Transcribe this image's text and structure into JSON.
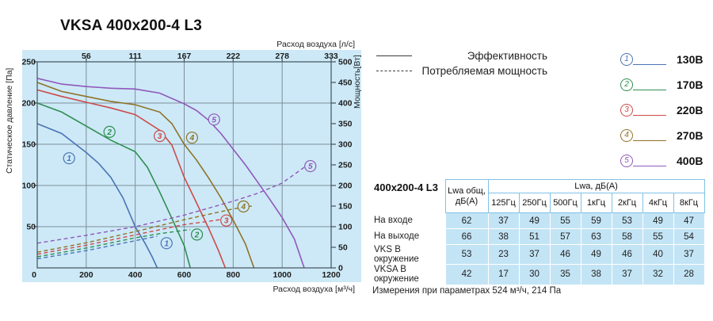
{
  "title": "VKSA 400x200-4 L3",
  "chart_data": {
    "type": "line",
    "title": "VKSA 400x200-4 L3",
    "bg_color": "#cde9f7",
    "grid_color": "#7d8e98",
    "frame_color": "#43525c",
    "axes": {
      "x_bottom": {
        "label": "Расход воздуха [м³/ч]",
        "range": [
          0,
          1200
        ],
        "ticks": [
          0,
          200,
          400,
          600,
          800,
          1000,
          1200
        ]
      },
      "x_top": {
        "label": "Расход воздуха [л/с]",
        "ticks": [
          "56",
          "111",
          "167",
          "222",
          "278",
          "333"
        ],
        "tick_positions": [
          200,
          400,
          600,
          800,
          1000,
          1200
        ]
      },
      "y_left": {
        "label": "Статическое давление [Па]",
        "range": [
          0,
          250
        ],
        "ticks": [
          50,
          100,
          150,
          200,
          250
        ]
      },
      "y_right": {
        "label": "Мощность[Вт]",
        "range": [
          0,
          500
        ],
        "ticks": [
          0,
          50,
          100,
          150,
          200,
          250,
          300,
          350,
          400,
          450,
          500
        ]
      }
    },
    "series": [
      {
        "id": "1",
        "name": "130В эффективность",
        "color": "#4a74b5",
        "style": "solid",
        "axis": "left",
        "label_at": [
          130,
          133
        ],
        "points": [
          [
            0,
            175
          ],
          [
            100,
            163
          ],
          [
            200,
            140
          ],
          [
            250,
            127
          ],
          [
            300,
            110
          ],
          [
            350,
            85
          ],
          [
            400,
            50
          ],
          [
            440,
            30
          ],
          [
            470,
            13
          ],
          [
            490,
            0
          ]
        ]
      },
      {
        "id": "2",
        "name": "170В эффективность",
        "color": "#2f8f51",
        "style": "solid",
        "axis": "left",
        "label_at": [
          295,
          165
        ],
        "points": [
          [
            0,
            200
          ],
          [
            100,
            189
          ],
          [
            200,
            172
          ],
          [
            300,
            155
          ],
          [
            400,
            141
          ],
          [
            450,
            122
          ],
          [
            500,
            92
          ],
          [
            550,
            60
          ],
          [
            600,
            27
          ],
          [
            625,
            0
          ]
        ]
      },
      {
        "id": "3",
        "name": "220В эффективность",
        "color": "#cc4a4a",
        "style": "solid",
        "axis": "left",
        "label_at": [
          500,
          160
        ],
        "points": [
          [
            0,
            216
          ],
          [
            100,
            208
          ],
          [
            200,
            201
          ],
          [
            300,
            194
          ],
          [
            400,
            186
          ],
          [
            500,
            167
          ],
          [
            550,
            149
          ],
          [
            600,
            110
          ],
          [
            650,
            79
          ],
          [
            700,
            48
          ],
          [
            740,
            21
          ],
          [
            768,
            0
          ]
        ]
      },
      {
        "id": "4",
        "name": "270В эффективность",
        "color": "#8e7327",
        "style": "solid",
        "axis": "left",
        "label_at": [
          632,
          158
        ],
        "points": [
          [
            0,
            225
          ],
          [
            100,
            214
          ],
          [
            200,
            208
          ],
          [
            300,
            202
          ],
          [
            400,
            198
          ],
          [
            500,
            189
          ],
          [
            550,
            175
          ],
          [
            600,
            150
          ],
          [
            650,
            131
          ],
          [
            700,
            109
          ],
          [
            750,
            85
          ],
          [
            800,
            58
          ],
          [
            850,
            29
          ],
          [
            885,
            0
          ]
        ]
      },
      {
        "id": "5",
        "name": "400В эффективность",
        "color": "#8f58bb",
        "style": "solid",
        "axis": "left",
        "label_at": [
          722,
          180
        ],
        "points": [
          [
            0,
            230
          ],
          [
            100,
            223
          ],
          [
            200,
            220
          ],
          [
            300,
            218
          ],
          [
            400,
            217
          ],
          [
            500,
            212
          ],
          [
            600,
            199
          ],
          [
            650,
            191
          ],
          [
            700,
            179
          ],
          [
            750,
            163
          ],
          [
            800,
            144
          ],
          [
            850,
            125
          ],
          [
            900,
            104
          ],
          [
            950,
            83
          ],
          [
            1000,
            61
          ],
          [
            1050,
            35
          ],
          [
            1090,
            0
          ]
        ]
      },
      {
        "id": "1",
        "name": "130В потребляемая мощность",
        "color": "#4a74b5",
        "style": "dashed",
        "axis": "right",
        "label_at": [
          528,
          60
        ],
        "points": [
          [
            0,
            22
          ],
          [
            200,
            42
          ],
          [
            400,
            66
          ],
          [
            490,
            77
          ]
        ]
      },
      {
        "id": "2",
        "name": "170В потребляемая мощность",
        "color": "#2f8f51",
        "style": "dashed",
        "axis": "right",
        "label_at": [
          652,
          81
        ],
        "points": [
          [
            0,
            27
          ],
          [
            200,
            48
          ],
          [
            400,
            73
          ],
          [
            500,
            83
          ],
          [
            625,
            93
          ]
        ]
      },
      {
        "id": "3",
        "name": "220В потребляемая мощность",
        "color": "#cc4a4a",
        "style": "dashed",
        "axis": "right",
        "label_at": [
          772,
          115
        ],
        "points": [
          [
            0,
            33
          ],
          [
            200,
            55
          ],
          [
            400,
            80
          ],
          [
            600,
            105
          ],
          [
            700,
            113
          ],
          [
            768,
            119
          ]
        ]
      },
      {
        "id": "4",
        "name": "270В потребляемая мощность",
        "color": "#8e7327",
        "style": "dashed",
        "axis": "right",
        "label_at": [
          842,
          149
        ],
        "points": [
          [
            0,
            38
          ],
          [
            200,
            61
          ],
          [
            400,
            88
          ],
          [
            600,
            117
          ],
          [
            800,
            143
          ],
          [
            885,
            151
          ]
        ]
      },
      {
        "id": "5",
        "name": "400В потребляемая мощность",
        "color": "#8f58bb",
        "style": "dashed",
        "axis": "right",
        "label_at": [
          1115,
          247
        ],
        "points": [
          [
            0,
            60
          ],
          [
            200,
            79
          ],
          [
            400,
            100
          ],
          [
            600,
            128
          ],
          [
            800,
            162
          ],
          [
            900,
            181
          ],
          [
            1000,
            206
          ],
          [
            1090,
            244
          ]
        ]
      }
    ]
  },
  "legend": {
    "efficiency_label": "Эффективность",
    "power_label": "Потребляемая мощность",
    "items": [
      {
        "num": "1",
        "label": "130В",
        "color": "#4a74b5"
      },
      {
        "num": "2",
        "label": "170В",
        "color": "#2f8f51"
      },
      {
        "num": "3",
        "label": "220В",
        "color": "#cc4a4a"
      },
      {
        "num": "4",
        "label": "270В",
        "color": "#8e7327"
      },
      {
        "num": "5",
        "label": "400В",
        "color": "#8f58bb"
      }
    ]
  },
  "table": {
    "product_label": "400x200-4 L3",
    "col1_header": "Lwa общ, дБ(A)",
    "group_header": "Lwa, дБ(A)",
    "freq_headers": [
      "125Гц",
      "250Гц",
      "500Гц",
      "1кГц",
      "2кГц",
      "4кГц",
      "8кГц"
    ],
    "rows": [
      {
        "label": "На входе",
        "total": 62,
        "values": [
          37,
          49,
          55,
          59,
          53,
          49,
          47
        ]
      },
      {
        "label": "На выходе",
        "total": 66,
        "values": [
          38,
          51,
          57,
          63,
          58,
          55,
          54
        ]
      },
      {
        "label": "VKS В окружение",
        "total": 53,
        "values": [
          23,
          37,
          46,
          49,
          46,
          40,
          37
        ]
      },
      {
        "label": "VKSA В окружение",
        "total": 42,
        "values": [
          17,
          30,
          35,
          38,
          37,
          32,
          28
        ]
      }
    ]
  },
  "footnote": "Измерения при параметрах 524 м³/ч, 214 Па"
}
